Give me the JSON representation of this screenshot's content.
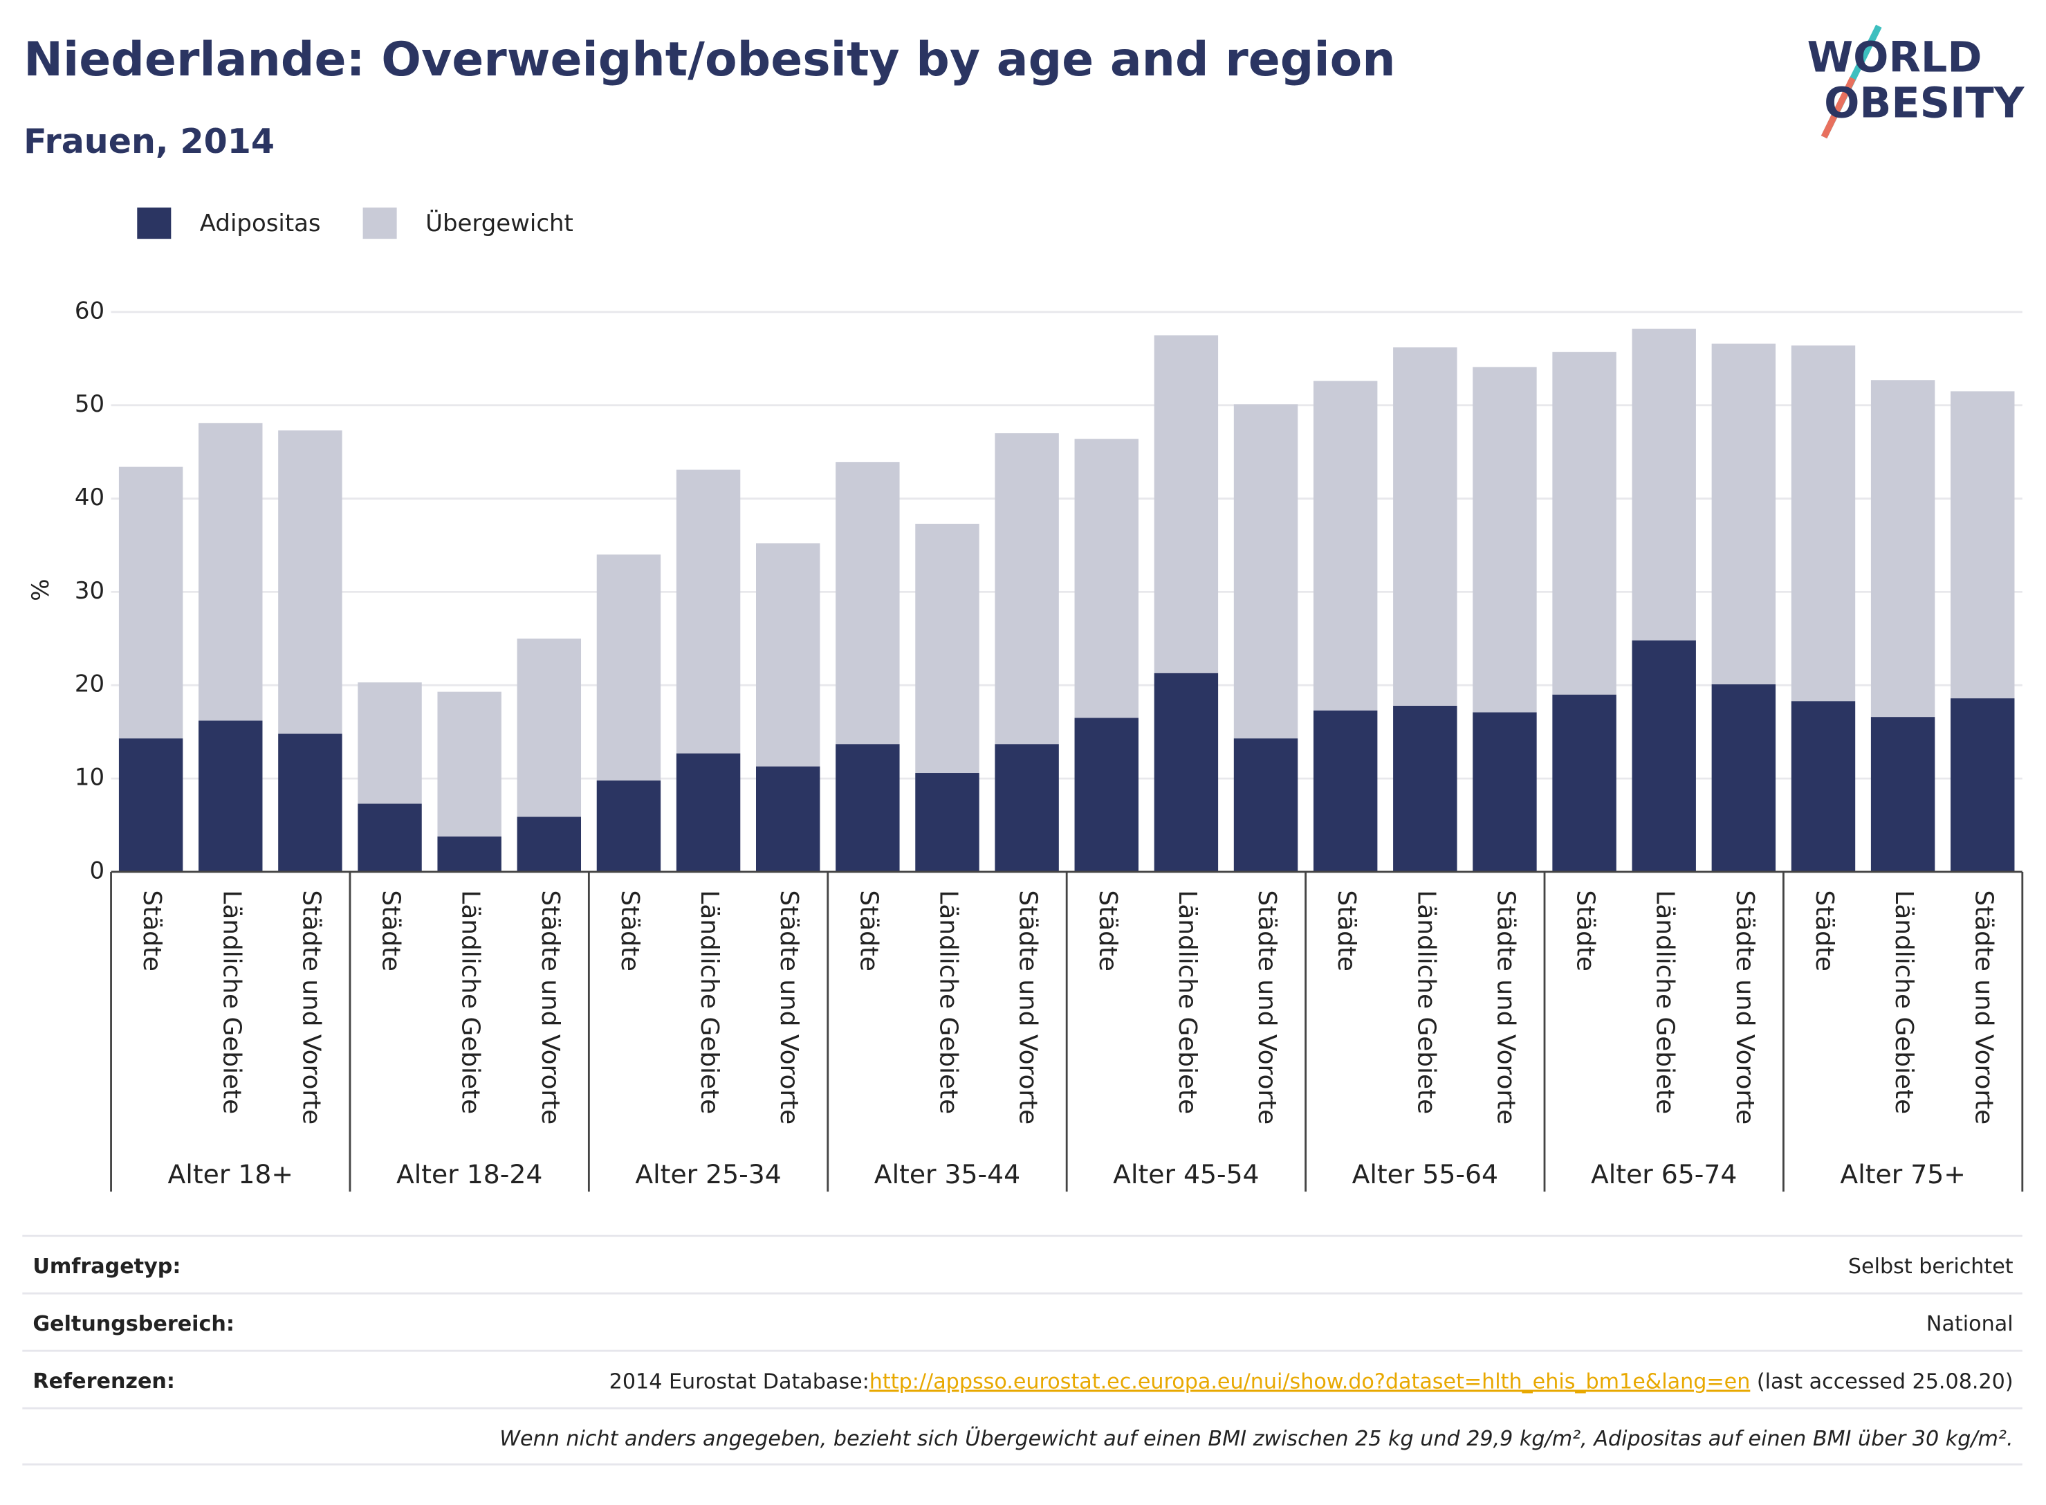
{
  "chart_data": {
    "type": "stacked_bar",
    "title": "Niederlande: Overweight/obesity by age and region",
    "subtitle": "Frauen, 2014",
    "y_label": "%",
    "logo": [
      "WORLD",
      "OBESITY"
    ],
    "categories": [
      "Städte",
      "Ländliche Gebiete",
      "Städte und Vororte",
      "Städte",
      "Ländliche Gebiete",
      "Städte und Vororte",
      "Städte",
      "Ländliche Gebiete",
      "Städte und Vororte",
      "Städte",
      "Ländliche Gebiete",
      "Städte und Vororte",
      "Städte",
      "Ländliche Gebiete",
      "Städte und Vororte",
      "Städte",
      "Ländliche Gebiete",
      "Städte und Vororte",
      "Städte",
      "Ländliche Gebiete",
      "Städte und Vororte",
      "Städte",
      "Ländliche Gebiete",
      "Städte und Vororte"
    ],
    "groups": [
      "Alter 18+",
      "Alter 18-24",
      "Alter 25-34",
      "Alter 35-44",
      "Alter 45-54",
      "Alter 55-64",
      "Alter 65-74",
      "Alter 75+"
    ],
    "series": [
      {
        "name": "Adipositas",
        "color": "#2b3562",
        "values": [
          14.3,
          16.2,
          14.8,
          7.3,
          3.8,
          5.9,
          9.8,
          12.7,
          11.3,
          13.7,
          10.6,
          13.7,
          16.5,
          21.3,
          14.3,
          17.3,
          17.8,
          17.1,
          19.0,
          24.8,
          20.1,
          18.3,
          16.6,
          18.6
        ]
      },
      {
        "name": "Übergewicht",
        "color": "#c9cbd7",
        "values": [
          29.1,
          31.9,
          32.5,
          13.0,
          15.5,
          19.1,
          24.2,
          30.4,
          23.9,
          30.2,
          26.7,
          33.3,
          29.9,
          36.2,
          35.8,
          35.3,
          38.4,
          37.0,
          36.7,
          33.4,
          36.5,
          38.1,
          36.1,
          32.9
        ]
      }
    ],
    "ylim": [
      0,
      60
    ],
    "yticks": [
      0,
      10,
      20,
      30,
      40,
      50,
      60
    ],
    "grid": true
  },
  "footer": [
    {
      "label": "Umfragetyp:",
      "value": "Selbst berichtet"
    },
    {
      "label": "Geltungsbereich:",
      "value": "National"
    },
    {
      "label": "Referenzen:",
      "prefix": "2014 Eurostat Database:",
      "link": "http://appsso.eurostat.ec.europa.eu/nui/show.do?dataset=hlth_ehis_bm1e&lang=en",
      "suffix": " (last accessed 25.08.20)"
    }
  ],
  "note": "Wenn nicht anders angegeben, bezieht sich Übergewicht auf einen BMI zwischen 25 kg und 29,9 kg/m², Adipositas auf einen BMI über 30 kg/m²."
}
